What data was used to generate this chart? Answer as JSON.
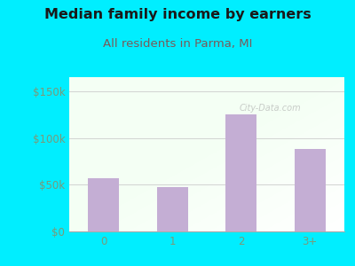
{
  "title": "Median family income by earners",
  "subtitle": "All residents in Parma, MI",
  "categories": [
    "0",
    "1",
    "2",
    "3+"
  ],
  "values": [
    57000,
    47000,
    125000,
    88000
  ],
  "bar_color": "#c4aed4",
  "background_outer": "#00eeff",
  "title_color": "#1a1a1a",
  "subtitle_color": "#7a5a5a",
  "tick_color": "#7a9a7a",
  "yticks": [
    0,
    50000,
    100000,
    150000
  ],
  "ytick_labels": [
    "$0",
    "$50k",
    "$100k",
    "$150k"
  ],
  "ylim": [
    0,
    165000
  ],
  "xlim": [
    -0.5,
    3.5
  ],
  "title_fontsize": 11.5,
  "subtitle_fontsize": 9.5,
  "tick_fontsize": 8.5,
  "watermark": "City-Data.com"
}
